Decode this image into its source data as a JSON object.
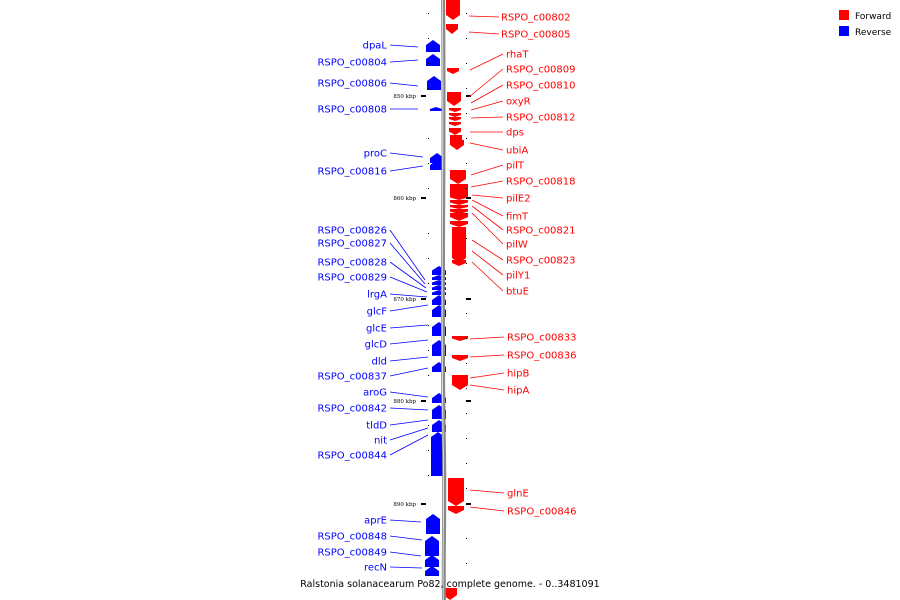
{
  "caption": "Ralstonia solanacearum Po82, complete genome. - 0..3481091",
  "legend": [
    {
      "label": "Forward",
      "color": "#ff0000"
    },
    {
      "label": "Reverse",
      "color": "#0000ff"
    }
  ],
  "colors": {
    "forward": "#ff0000",
    "reverse": "#0000ff",
    "backbone": "#999999"
  },
  "ticks": [
    "850 kbp",
    "860 kbp",
    "870 kbp",
    "880 kbp",
    "890 kbp"
  ],
  "forward_genes": [
    "RSPO_c00802",
    "RSPO_c00805",
    "rhaT",
    "RSPO_c00809",
    "RSPO_c00810",
    "oxyR",
    "RSPO_c00812",
    "dps",
    "ubiA",
    "pilT",
    "RSPO_c00818",
    "pilE2",
    "fimT",
    "RSPO_c00821",
    "pilW",
    "RSPO_c00823",
    "pilY1",
    "btuE",
    "RSPO_c00833",
    "RSPO_c00836",
    "hipB",
    "hipA",
    "glnE",
    "RSPO_c00846"
  ],
  "reverse_genes": [
    "dpaL",
    "RSPO_c00804",
    "RSPO_c00806",
    "RSPO_c00808",
    "proC",
    "RSPO_c00816",
    "RSPO_c00826",
    "RSPO_c00827",
    "RSPO_c00828",
    "RSPO_c00829",
    "lrgA",
    "glcF",
    "glcE",
    "glcD",
    "dld",
    "RSPO_c00837",
    "aroG",
    "RSPO_c00842",
    "tldD",
    "nit",
    "RSPO_c00844",
    "aprE",
    "RSPO_c00848",
    "RSPO_c00849",
    "recN"
  ]
}
